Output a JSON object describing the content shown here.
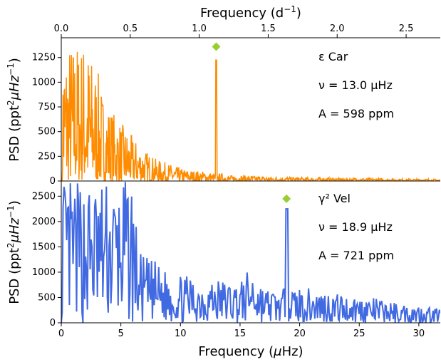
{
  "chart_data": [
    {
      "type": "line",
      "name_label": "ε Car",
      "nu_label": "ν = 13.0 μHz",
      "amp_label": "A = 598 ppm",
      "ylabel": "PSD (ppt²μHz⁻¹)",
      "ylim": [
        0,
        1450
      ],
      "xlim": [
        0,
        31.8
      ],
      "yticks": [
        0,
        250,
        500,
        750,
        1000,
        1250
      ],
      "color": "#ff8c00",
      "marker_color": "#9acd32",
      "marker": {
        "x": 13.0,
        "y": 1360
      },
      "peak": {
        "x": 13.0,
        "y": 1225
      },
      "envelope": [
        [
          0.1,
          1450
        ],
        [
          0.5,
          1450
        ],
        [
          1,
          1450
        ],
        [
          1.5,
          1450
        ],
        [
          2,
          1450
        ],
        [
          2.5,
          1300
        ],
        [
          3,
          1150
        ],
        [
          3.5,
          900
        ],
        [
          4,
          780
        ],
        [
          5,
          600
        ],
        [
          6,
          450
        ],
        [
          7,
          320
        ],
        [
          8,
          220
        ],
        [
          9,
          180
        ],
        [
          10,
          130
        ],
        [
          11,
          110
        ],
        [
          12,
          100
        ],
        [
          13,
          80
        ],
        [
          14,
          60
        ],
        [
          16,
          55
        ],
        [
          18,
          45
        ],
        [
          20,
          40
        ],
        [
          22,
          35
        ],
        [
          25,
          30
        ],
        [
          28,
          25
        ],
        [
          31.8,
          20
        ]
      ]
    },
    {
      "type": "line",
      "name_label": "γ² Vel",
      "nu_label": "ν = 18.9 μHz",
      "amp_label": "A = 721 ppm",
      "ylabel": "PSD (ppt²μHz⁻¹)",
      "xlabel": "Frequency (μHz)",
      "xlim": [
        0,
        31.8
      ],
      "ylim": [
        0,
        2800
      ],
      "xticks": [
        0,
        5,
        10,
        15,
        20,
        25,
        30
      ],
      "yticks": [
        0,
        500,
        1000,
        1500,
        2000,
        2500
      ],
      "color": "#4169e1",
      "marker_color": "#9acd32",
      "marker": {
        "x": 18.9,
        "y": 2450
      },
      "peak": {
        "x": 18.9,
        "y": 2250
      },
      "envelope": [
        [
          0.1,
          2800
        ],
        [
          1,
          2800
        ],
        [
          2,
          2800
        ],
        [
          3,
          2800
        ],
        [
          4,
          2800
        ],
        [
          5,
          2800
        ],
        [
          6,
          2800
        ],
        [
          6.5,
          1400
        ],
        [
          7,
          1300
        ],
        [
          8,
          1200
        ],
        [
          9,
          1000
        ],
        [
          10,
          950
        ],
        [
          11,
          900
        ],
        [
          12,
          900
        ],
        [
          13,
          900
        ],
        [
          14,
          850
        ],
        [
          15,
          800
        ],
        [
          16,
          1150
        ],
        [
          17,
          700
        ],
        [
          18,
          650
        ],
        [
          20,
          700
        ],
        [
          22,
          650
        ],
        [
          24,
          550
        ],
        [
          26,
          500
        ],
        [
          28,
          400
        ],
        [
          30,
          350
        ],
        [
          31.8,
          300
        ]
      ]
    }
  ],
  "top_axis": {
    "label": "Frequency (d⁻¹)",
    "ticks": [
      0.0,
      0.5,
      1.0,
      1.5,
      2.0,
      2.5
    ],
    "tick_labels": [
      "0.0",
      "0.5",
      "1.0",
      "1.5",
      "2.0",
      "2.5"
    ]
  }
}
